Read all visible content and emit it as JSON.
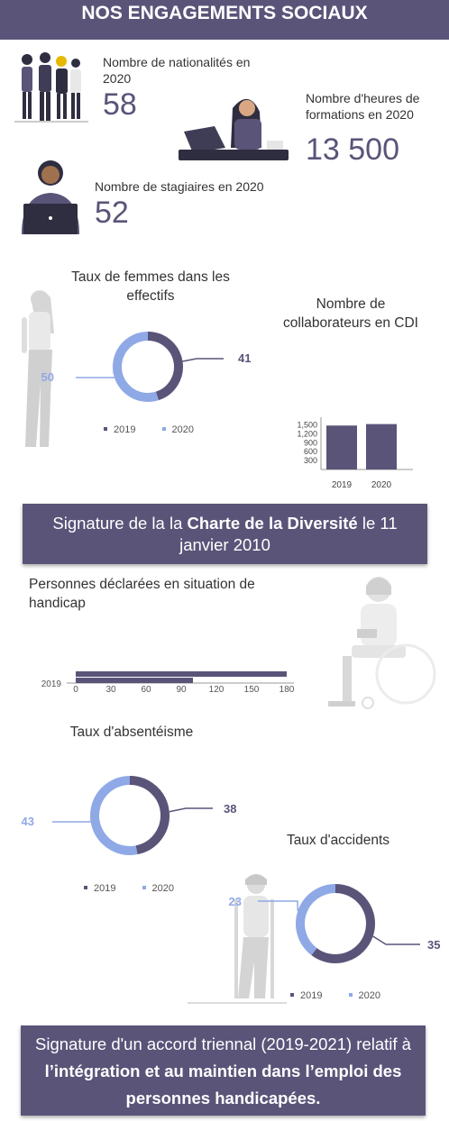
{
  "header": {
    "title": "NOS ENGAGEMENTS SOCIAUX"
  },
  "stats": {
    "nationalites": {
      "label": "Nombre de nationalités en 2020",
      "value": "58"
    },
    "heures": {
      "label": "Nombre d'heures de formations en 2020",
      "value": "13 500"
    },
    "stagiaires": {
      "label": "Nombre de stagiaires en 2020",
      "value": "52"
    }
  },
  "colors": {
    "primary": "#5a5479",
    "secondary": "#8fa9e6",
    "year2019": "#5a5479",
    "year2020": "#8fa9e6"
  },
  "legend": {
    "y2019": "2019",
    "y2020": "2020"
  },
  "banner1": {
    "text_before": "Signature de la  la ",
    "text_bold": "Charte de la Diversité",
    "text_after": " le 11 janvier 2010"
  },
  "banner2": {
    "text_before": "Signature d'un accord triennal (2019-2021) relatif à ",
    "text_bold": "l’intégration et au maintien dans l’emploi des personnes handicapées."
  },
  "icons": [
    "group-of-people-icon",
    "woman-at-laptop-icon",
    "person-with-laptop-icon",
    "standing-woman-icon",
    "wheelchair-person-icon",
    "person-on-crutches-icon"
  ],
  "chart_data": [
    {
      "id": "femmes",
      "type": "pie",
      "title": "Taux de femmes dans les effectifs",
      "labels": [
        "2019",
        "2020"
      ],
      "values": [
        41,
        50
      ]
    },
    {
      "id": "cdi",
      "type": "bar",
      "title": "Nombre de collaborateurs en CDI",
      "categories": [
        "2019",
        "2020"
      ],
      "values": [
        1480,
        1530
      ],
      "yticks": [
        300,
        600,
        900,
        1200,
        1500
      ],
      "ylim": [
        0,
        1700
      ]
    },
    {
      "id": "handicap",
      "type": "bar",
      "orientation": "horizontal",
      "title": "Personnes déclarées en situation de handicap",
      "categories": [
        "2019"
      ],
      "series": [
        {
          "name": "2019",
          "values": [
            180
          ]
        },
        {
          "name": "2020",
          "values": [
            100
          ]
        }
      ],
      "xticks": [
        0,
        30,
        60,
        90,
        120,
        150,
        180
      ],
      "xlim": [
        0,
        180
      ]
    },
    {
      "id": "absenteisme",
      "type": "pie",
      "title": "Taux d'absentéisme",
      "labels": [
        "2019",
        "2020"
      ],
      "values": [
        38,
        43
      ]
    },
    {
      "id": "accidents",
      "type": "pie",
      "title": "Taux d'accidents",
      "labels": [
        "2019",
        "2020"
      ],
      "values": [
        35,
        23
      ]
    }
  ]
}
